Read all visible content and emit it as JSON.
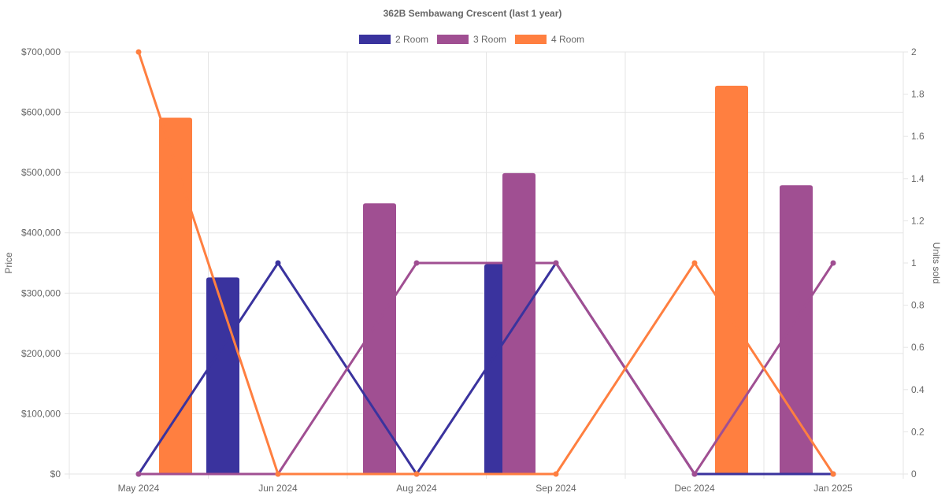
{
  "chart_data": {
    "type": "bar+line",
    "title": "362B Sembawang Crescent (last 1 year)",
    "categories": [
      "May 2024",
      "Jun 2024",
      "Aug 2024",
      "Sep 2024",
      "Dec 2024",
      "Jan 2025"
    ],
    "y_left": {
      "label": "Price",
      "ticks": [
        "$0",
        "$100,000",
        "$200,000",
        "$300,000",
        "$400,000",
        "$500,000",
        "$600,000",
        "$700,000"
      ],
      "range": [
        0,
        700000
      ]
    },
    "y_right": {
      "label": "Units sold",
      "ticks": [
        "0",
        "0.2",
        "0.4",
        "0.6",
        "0.8",
        "1",
        "1.2",
        "1.4",
        "1.6",
        "1.8",
        "2"
      ],
      "range": [
        0,
        2
      ]
    },
    "legend": {
      "placement": "top-center"
    },
    "grid": true,
    "series": [
      {
        "name": "2 Room",
        "color": "#3a339e",
        "price": [
          null,
          326000,
          null,
          348000,
          null,
          null
        ],
        "units": [
          0,
          1,
          0,
          1,
          0,
          0
        ]
      },
      {
        "name": "3 Room",
        "color": "#a04f92",
        "price": [
          null,
          null,
          449000,
          499000,
          null,
          479000
        ],
        "units": [
          0,
          0,
          1,
          1,
          0,
          1
        ]
      },
      {
        "name": "4 Room",
        "color": "#ff7f40",
        "price": [
          591000,
          null,
          null,
          null,
          644000,
          null
        ],
        "units": [
          2,
          0,
          0,
          0,
          1,
          0
        ]
      }
    ]
  }
}
